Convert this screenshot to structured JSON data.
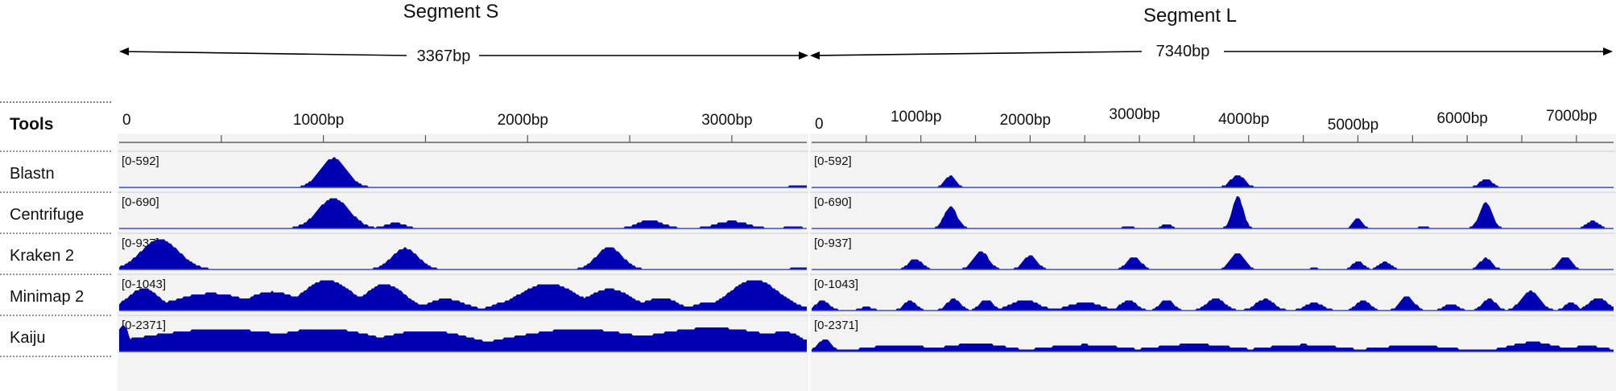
{
  "segments": [
    {
      "title": "Segment S",
      "length_label": "3367bp",
      "ticks": [
        "0",
        "1000bp",
        "2000bp",
        "3000bp"
      ]
    },
    {
      "title": "Segment L",
      "length_label": "7340bp",
      "ticks": [
        "0",
        "1000bp",
        "2000bp",
        "3000bp",
        "4000bp",
        "5000bp",
        "6000bp",
        "7000bp"
      ]
    }
  ],
  "tools_header": "Tools",
  "colors": {
    "fill": "#0000b3",
    "baseline": "#3a4bc8",
    "panel": "#f3f3f3",
    "border": "#bdbdbd"
  },
  "chart_data": {
    "type": "area",
    "subtype": "coverage-tracks",
    "x_unit": "bp",
    "segments": [
      {
        "name": "Segment S",
        "length": 3367,
        "ticks": [
          0,
          1000,
          2000,
          3000
        ]
      },
      {
        "name": "Segment L",
        "length": 7340,
        "ticks": [
          0,
          1000,
          2000,
          3000,
          4000,
          5000,
          6000,
          7000
        ]
      }
    ],
    "tracks": [
      {
        "name": "Blastn",
        "range": "[0-592]",
        "max": 592,
        "S": [
          {
            "c": 1050,
            "w": 90,
            "h": 540
          },
          {
            "c": 3330,
            "w": 50,
            "h": 50
          }
        ],
        "L": [
          {
            "c": 1270,
            "w": 70,
            "h": 210
          },
          {
            "c": 3900,
            "w": 90,
            "h": 230
          },
          {
            "c": 6170,
            "w": 80,
            "h": 160
          }
        ]
      },
      {
        "name": "Centrifuge",
        "range": "[0-690]",
        "max": 690,
        "S": [
          {
            "c": 1050,
            "w": 110,
            "h": 650
          },
          {
            "c": 1350,
            "w": 70,
            "h": 120
          },
          {
            "c": 2600,
            "w": 90,
            "h": 180
          },
          {
            "c": 3000,
            "w": 110,
            "h": 160
          },
          {
            "c": 3300,
            "w": 50,
            "h": 60
          }
        ],
        "L": [
          {
            "c": 1270,
            "w": 85,
            "h": 470
          },
          {
            "c": 3900,
            "w": 70,
            "h": 690
          },
          {
            "c": 2900,
            "w": 60,
            "h": 60
          },
          {
            "c": 3250,
            "w": 60,
            "h": 100
          },
          {
            "c": 5000,
            "w": 60,
            "h": 220
          },
          {
            "c": 5600,
            "w": 50,
            "h": 60
          },
          {
            "c": 6170,
            "w": 80,
            "h": 560
          },
          {
            "c": 7150,
            "w": 80,
            "h": 170
          }
        ]
      },
      {
        "name": "Kraken 2",
        "range": "[0-937]",
        "max": 937,
        "S": [
          {
            "c": 200,
            "w": 130,
            "h": 880
          },
          {
            "c": 1400,
            "w": 90,
            "h": 620
          },
          {
            "c": 2400,
            "w": 90,
            "h": 650
          },
          {
            "c": 3330,
            "w": 50,
            "h": 60
          }
        ],
        "L": [
          {
            "c": 950,
            "w": 90,
            "h": 310
          },
          {
            "c": 1550,
            "w": 100,
            "h": 530
          },
          {
            "c": 2000,
            "w": 90,
            "h": 400
          },
          {
            "c": 2950,
            "w": 90,
            "h": 370
          },
          {
            "c": 3900,
            "w": 90,
            "h": 490
          },
          {
            "c": 4600,
            "w": 50,
            "h": 50
          },
          {
            "c": 5000,
            "w": 70,
            "h": 250
          },
          {
            "c": 5250,
            "w": 80,
            "h": 220
          },
          {
            "c": 6170,
            "w": 80,
            "h": 330
          },
          {
            "c": 6900,
            "w": 80,
            "h": 380
          }
        ]
      },
      {
        "name": "Minimap 2",
        "range": "[0-1043]",
        "max": 1043,
        "S": [
          {
            "c": 120,
            "w": 110,
            "h": 720
          },
          {
            "c": 450,
            "w": 260,
            "h": 560
          },
          {
            "c": 750,
            "w": 180,
            "h": 620
          },
          {
            "c": 1020,
            "w": 170,
            "h": 990
          },
          {
            "c": 1300,
            "w": 140,
            "h": 860
          },
          {
            "c": 1600,
            "w": 130,
            "h": 380
          },
          {
            "c": 1900,
            "w": 100,
            "h": 300
          },
          {
            "c": 2100,
            "w": 200,
            "h": 880
          },
          {
            "c": 2400,
            "w": 160,
            "h": 700
          },
          {
            "c": 2650,
            "w": 120,
            "h": 420
          },
          {
            "c": 2900,
            "w": 120,
            "h": 280
          },
          {
            "c": 3110,
            "w": 170,
            "h": 1000
          }
        ],
        "L": [
          {
            "c": 100,
            "w": 90,
            "h": 320
          },
          {
            "c": 500,
            "w": 80,
            "h": 130
          },
          {
            "c": 900,
            "w": 80,
            "h": 330
          },
          {
            "c": 1300,
            "w": 90,
            "h": 380
          },
          {
            "c": 1600,
            "w": 90,
            "h": 360
          },
          {
            "c": 1950,
            "w": 180,
            "h": 350
          },
          {
            "c": 2500,
            "w": 200,
            "h": 270
          },
          {
            "c": 2900,
            "w": 100,
            "h": 340
          },
          {
            "c": 3250,
            "w": 90,
            "h": 360
          },
          {
            "c": 3700,
            "w": 120,
            "h": 390
          },
          {
            "c": 4150,
            "w": 120,
            "h": 370
          },
          {
            "c": 4600,
            "w": 120,
            "h": 250
          },
          {
            "c": 5050,
            "w": 90,
            "h": 330
          },
          {
            "c": 5450,
            "w": 90,
            "h": 470
          },
          {
            "c": 5850,
            "w": 90,
            "h": 220
          },
          {
            "c": 6200,
            "w": 90,
            "h": 380
          },
          {
            "c": 6580,
            "w": 120,
            "h": 630
          },
          {
            "c": 6950,
            "w": 80,
            "h": 260
          },
          {
            "c": 7200,
            "w": 120,
            "h": 420
          }
        ]
      },
      {
        "name": "Kaiju",
        "range": "[0-2371]",
        "max": 2371,
        "S": [
          {
            "c": 20,
            "w": 40,
            "h": 2000
          },
          {
            "c": 500,
            "w": 600,
            "h": 1650
          },
          {
            "c": 1000,
            "w": 400,
            "h": 1700
          },
          {
            "c": 1500,
            "w": 350,
            "h": 1550
          },
          {
            "c": 2250,
            "w": 500,
            "h": 1650
          },
          {
            "c": 2900,
            "w": 500,
            "h": 1750
          },
          {
            "c": 3250,
            "w": 150,
            "h": 1500
          }
        ],
        "L": [
          {
            "c": 120,
            "w": 90,
            "h": 900
          },
          {
            "c": 800,
            "w": 400,
            "h": 500
          },
          {
            "c": 1500,
            "w": 400,
            "h": 600
          },
          {
            "c": 2500,
            "w": 500,
            "h": 520
          },
          {
            "c": 3500,
            "w": 500,
            "h": 560
          },
          {
            "c": 4500,
            "w": 500,
            "h": 520
          },
          {
            "c": 5500,
            "w": 500,
            "h": 450
          },
          {
            "c": 6600,
            "w": 300,
            "h": 700
          },
          {
            "c": 7100,
            "w": 250,
            "h": 420
          }
        ]
      }
    ]
  }
}
